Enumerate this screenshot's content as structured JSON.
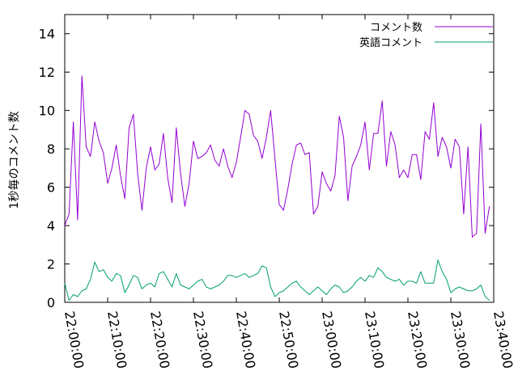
{
  "chart_data": {
    "type": "line",
    "title": "",
    "xlabel": "",
    "ylabel": "1秒毎のコメント数",
    "xlim": [
      "22:00:00",
      "23:40:00"
    ],
    "ylim": [
      0,
      15
    ],
    "x_ticks": [
      "22:00:00",
      "22:10:00",
      "22:20:00",
      "22:30:00",
      "22:40:00",
      "22:50:00",
      "23:00:00",
      "23:10:00",
      "23:20:00",
      "23:30:00",
      "23:40:00"
    ],
    "y_ticks": [
      0,
      2,
      4,
      6,
      8,
      10,
      12,
      14
    ],
    "y_tick_labels": [
      "0",
      "2",
      "4",
      "6",
      "8",
      "10",
      "12",
      "14"
    ],
    "grid": false,
    "legend_position": "top-right",
    "series": [
      {
        "name": "コメント数",
        "color": "#9400d3",
        "points": [
          [
            "22:00:00",
            4.0
          ],
          [
            "22:01:00",
            4.6
          ],
          [
            "22:02:00",
            9.4
          ],
          [
            "22:03:00",
            4.3
          ],
          [
            "22:04:00",
            11.8
          ],
          [
            "22:05:00",
            8.1
          ],
          [
            "22:06:00",
            7.6
          ],
          [
            "22:07:00",
            9.4
          ],
          [
            "22:08:00",
            8.4
          ],
          [
            "22:09:00",
            7.8
          ],
          [
            "22:10:00",
            6.2
          ],
          [
            "22:11:00",
            7.0
          ],
          [
            "22:12:00",
            8.2
          ],
          [
            "22:13:00",
            6.6
          ],
          [
            "22:14:00",
            5.4
          ],
          [
            "22:15:00",
            9.1
          ],
          [
            "22:16:00",
            9.8
          ],
          [
            "22:17:00",
            6.7
          ],
          [
            "22:18:00",
            4.8
          ],
          [
            "22:19:00",
            7.0
          ],
          [
            "22:20:00",
            8.1
          ],
          [
            "22:21:00",
            6.9
          ],
          [
            "22:22:00",
            7.2
          ],
          [
            "22:23:00",
            8.8
          ],
          [
            "22:24:00",
            6.5
          ],
          [
            "22:25:00",
            5.2
          ],
          [
            "22:26:00",
            9.1
          ],
          [
            "22:27:00",
            6.7
          ],
          [
            "22:28:00",
            5.0
          ],
          [
            "22:29:00",
            6.2
          ],
          [
            "22:30:00",
            8.4
          ],
          [
            "22:31:00",
            7.5
          ],
          [
            "22:32:00",
            7.6
          ],
          [
            "22:33:00",
            7.8
          ],
          [
            "22:34:00",
            8.2
          ],
          [
            "22:35:00",
            7.4
          ],
          [
            "22:36:00",
            7.1
          ],
          [
            "22:37:00",
            8.0
          ],
          [
            "22:38:00",
            7.1
          ],
          [
            "22:39:00",
            6.5
          ],
          [
            "22:40:00",
            7.3
          ],
          [
            "22:41:00",
            8.6
          ],
          [
            "22:42:00",
            10.0
          ],
          [
            "22:43:00",
            9.8
          ],
          [
            "22:44:00",
            8.7
          ],
          [
            "22:45:00",
            8.4
          ],
          [
            "22:46:00",
            7.5
          ],
          [
            "22:47:00",
            8.6
          ],
          [
            "22:48:00",
            10.0
          ],
          [
            "22:49:00",
            7.5
          ],
          [
            "22:50:00",
            5.1
          ],
          [
            "22:51:00",
            4.8
          ],
          [
            "22:52:00",
            5.9
          ],
          [
            "22:53:00",
            7.2
          ],
          [
            "22:54:00",
            8.2
          ],
          [
            "22:55:00",
            8.3
          ],
          [
            "22:56:00",
            7.7
          ],
          [
            "22:57:00",
            7.8
          ],
          [
            "22:58:00",
            4.6
          ],
          [
            "22:59:00",
            5.0
          ],
          [
            "23:00:00",
            6.8
          ],
          [
            "23:01:00",
            6.2
          ],
          [
            "23:02:00",
            5.8
          ],
          [
            "23:03:00",
            6.6
          ],
          [
            "23:04:00",
            9.7
          ],
          [
            "23:05:00",
            8.6
          ],
          [
            "23:06:00",
            5.3
          ],
          [
            "23:07:00",
            7.1
          ],
          [
            "23:08:00",
            7.6
          ],
          [
            "23:09:00",
            8.2
          ],
          [
            "23:10:00",
            9.4
          ],
          [
            "23:11:00",
            6.9
          ],
          [
            "23:12:00",
            8.8
          ],
          [
            "23:13:00",
            8.8
          ],
          [
            "23:14:00",
            10.5
          ],
          [
            "23:15:00",
            7.1
          ],
          [
            "23:16:00",
            8.9
          ],
          [
            "23:17:00",
            8.2
          ],
          [
            "23:18:00",
            6.5
          ],
          [
            "23:19:00",
            6.9
          ],
          [
            "23:20:00",
            6.5
          ],
          [
            "23:21:00",
            7.7
          ],
          [
            "23:22:00",
            7.7
          ],
          [
            "23:23:00",
            6.4
          ],
          [
            "23:24:00",
            8.9
          ],
          [
            "23:25:00",
            8.5
          ],
          [
            "23:26:00",
            10.4
          ],
          [
            "23:27:00",
            7.6
          ],
          [
            "23:28:00",
            8.6
          ],
          [
            "23:29:00",
            8.1
          ],
          [
            "23:30:00",
            7.0
          ],
          [
            "23:31:00",
            8.5
          ],
          [
            "23:32:00",
            8.1
          ],
          [
            "23:33:00",
            4.6
          ],
          [
            "23:34:00",
            8.1
          ],
          [
            "23:35:00",
            3.4
          ],
          [
            "23:36:00",
            3.6
          ],
          [
            "23:37:00",
            9.3
          ],
          [
            "23:38:00",
            3.6
          ],
          [
            "23:39:00",
            5.0
          ]
        ]
      },
      {
        "name": "英語コメント",
        "color": "#009e73",
        "points": [
          [
            "22:00:00",
            1.0
          ],
          [
            "22:01:00",
            0.1
          ],
          [
            "22:02:00",
            0.4
          ],
          [
            "22:03:00",
            0.3
          ],
          [
            "22:04:00",
            0.6
          ],
          [
            "22:05:00",
            0.7
          ],
          [
            "22:06:00",
            1.2
          ],
          [
            "22:07:00",
            2.1
          ],
          [
            "22:08:00",
            1.6
          ],
          [
            "22:09:00",
            1.7
          ],
          [
            "22:10:00",
            1.3
          ],
          [
            "22:11:00",
            1.1
          ],
          [
            "22:12:00",
            1.5
          ],
          [
            "22:13:00",
            1.4
          ],
          [
            "22:14:00",
            0.5
          ],
          [
            "22:15:00",
            0.9
          ],
          [
            "22:16:00",
            1.4
          ],
          [
            "22:17:00",
            1.3
          ],
          [
            "22:18:00",
            0.7
          ],
          [
            "22:19:00",
            0.9
          ],
          [
            "22:20:00",
            1.0
          ],
          [
            "22:21:00",
            0.8
          ],
          [
            "22:22:00",
            1.5
          ],
          [
            "22:23:00",
            1.6
          ],
          [
            "22:24:00",
            1.2
          ],
          [
            "22:25:00",
            0.8
          ],
          [
            "22:26:00",
            1.5
          ],
          [
            "22:27:00",
            0.9
          ],
          [
            "22:28:00",
            0.8
          ],
          [
            "22:29:00",
            0.7
          ],
          [
            "22:30:00",
            0.9
          ],
          [
            "22:31:00",
            1.1
          ],
          [
            "22:32:00",
            1.2
          ],
          [
            "22:33:00",
            0.8
          ],
          [
            "22:34:00",
            0.7
          ],
          [
            "22:35:00",
            0.8
          ],
          [
            "22:36:00",
            0.9
          ],
          [
            "22:37:00",
            1.1
          ],
          [
            "22:38:00",
            1.4
          ],
          [
            "22:39:00",
            1.4
          ],
          [
            "22:40:00",
            1.3
          ],
          [
            "22:41:00",
            1.4
          ],
          [
            "22:42:00",
            1.5
          ],
          [
            "22:43:00",
            1.3
          ],
          [
            "22:44:00",
            1.4
          ],
          [
            "22:45:00",
            1.5
          ],
          [
            "22:46:00",
            1.9
          ],
          [
            "22:47:00",
            1.8
          ],
          [
            "22:48:00",
            0.8
          ],
          [
            "22:49:00",
            0.3
          ],
          [
            "22:50:00",
            0.5
          ],
          [
            "22:51:00",
            0.6
          ],
          [
            "22:52:00",
            0.8
          ],
          [
            "22:53:00",
            1.0
          ],
          [
            "22:54:00",
            1.1
          ],
          [
            "22:55:00",
            0.8
          ],
          [
            "22:56:00",
            0.6
          ],
          [
            "22:57:00",
            0.4
          ],
          [
            "22:58:00",
            0.6
          ],
          [
            "22:59:00",
            0.8
          ],
          [
            "23:00:00",
            0.6
          ],
          [
            "23:01:00",
            0.4
          ],
          [
            "23:02:00",
            0.7
          ],
          [
            "23:03:00",
            0.9
          ],
          [
            "23:04:00",
            0.8
          ],
          [
            "23:05:00",
            0.5
          ],
          [
            "23:06:00",
            0.6
          ],
          [
            "23:07:00",
            0.8
          ],
          [
            "23:08:00",
            1.1
          ],
          [
            "23:09:00",
            1.3
          ],
          [
            "23:10:00",
            1.1
          ],
          [
            "23:11:00",
            1.4
          ],
          [
            "23:12:00",
            1.3
          ],
          [
            "23:13:00",
            1.8
          ],
          [
            "23:14:00",
            1.6
          ],
          [
            "23:15:00",
            1.3
          ],
          [
            "23:16:00",
            1.2
          ],
          [
            "23:17:00",
            1.1
          ],
          [
            "23:18:00",
            1.2
          ],
          [
            "23:19:00",
            0.9
          ],
          [
            "23:20:00",
            1.1
          ],
          [
            "23:21:00",
            1.1
          ],
          [
            "23:22:00",
            1.0
          ],
          [
            "23:23:00",
            1.6
          ],
          [
            "23:24:00",
            1.0
          ],
          [
            "23:25:00",
            1.0
          ],
          [
            "23:26:00",
            1.0
          ],
          [
            "23:27:00",
            2.2
          ],
          [
            "23:28:00",
            1.6
          ],
          [
            "23:29:00",
            1.2
          ],
          [
            "23:30:00",
            0.5
          ],
          [
            "23:31:00",
            0.7
          ],
          [
            "23:32:00",
            0.8
          ],
          [
            "23:33:00",
            0.7
          ],
          [
            "23:34:00",
            0.6
          ],
          [
            "23:35:00",
            0.6
          ],
          [
            "23:36:00",
            0.7
          ],
          [
            "23:37:00",
            0.9
          ],
          [
            "23:38:00",
            0.3
          ],
          [
            "23:39:00",
            0.1
          ]
        ]
      }
    ]
  }
}
